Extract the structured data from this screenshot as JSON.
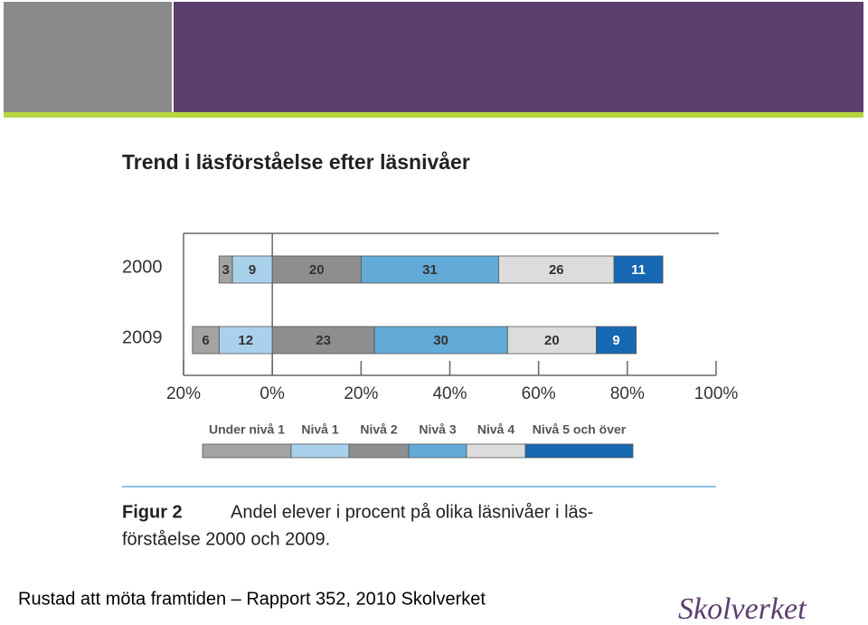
{
  "chart_data": {
    "type": "diverging-stacked-bar",
    "title": "Trend i läsförståelse efter läsnivåer",
    "categories": [
      "2000",
      "2009"
    ],
    "series": [
      {
        "name": "Under nivå 1",
        "color": "#a3a3a3",
        "values": [
          3,
          6
        ]
      },
      {
        "name": "Nivå 1",
        "color": "#a9d1ec",
        "values": [
          9,
          12
        ]
      },
      {
        "name": "Nivå 2",
        "color": "#8e8e8e",
        "values": [
          20,
          23
        ]
      },
      {
        "name": "Nivå 3",
        "color": "#62aad8",
        "values": [
          31,
          30
        ]
      },
      {
        "name": "Nivå 4",
        "color": "#dcdcdc",
        "values": [
          26,
          20
        ]
      },
      {
        "name": "Nivå 5 och över",
        "color": "#1768b3",
        "values": [
          11,
          9
        ]
      }
    ],
    "xlim": [
      -20,
      100
    ],
    "xticks": [
      {
        "value": -20,
        "label": "20%"
      },
      {
        "value": 0,
        "label": "0%"
      },
      {
        "value": 20,
        "label": "20%"
      },
      {
        "value": 40,
        "label": "40%"
      },
      {
        "value": 60,
        "label": "60%"
      },
      {
        "value": 80,
        "label": "80%"
      },
      {
        "value": 100,
        "label": "100%"
      }
    ]
  },
  "caption": {
    "label": "Figur 2",
    "lines": [
      "Andel elever i procent på olika läsnivåer i läs-",
      "förståelse 2000 och 2009."
    ]
  },
  "footer": "Rustad att möta framtiden – Rapport 352, 2010 Skolverket",
  "logo": "Skolverket"
}
